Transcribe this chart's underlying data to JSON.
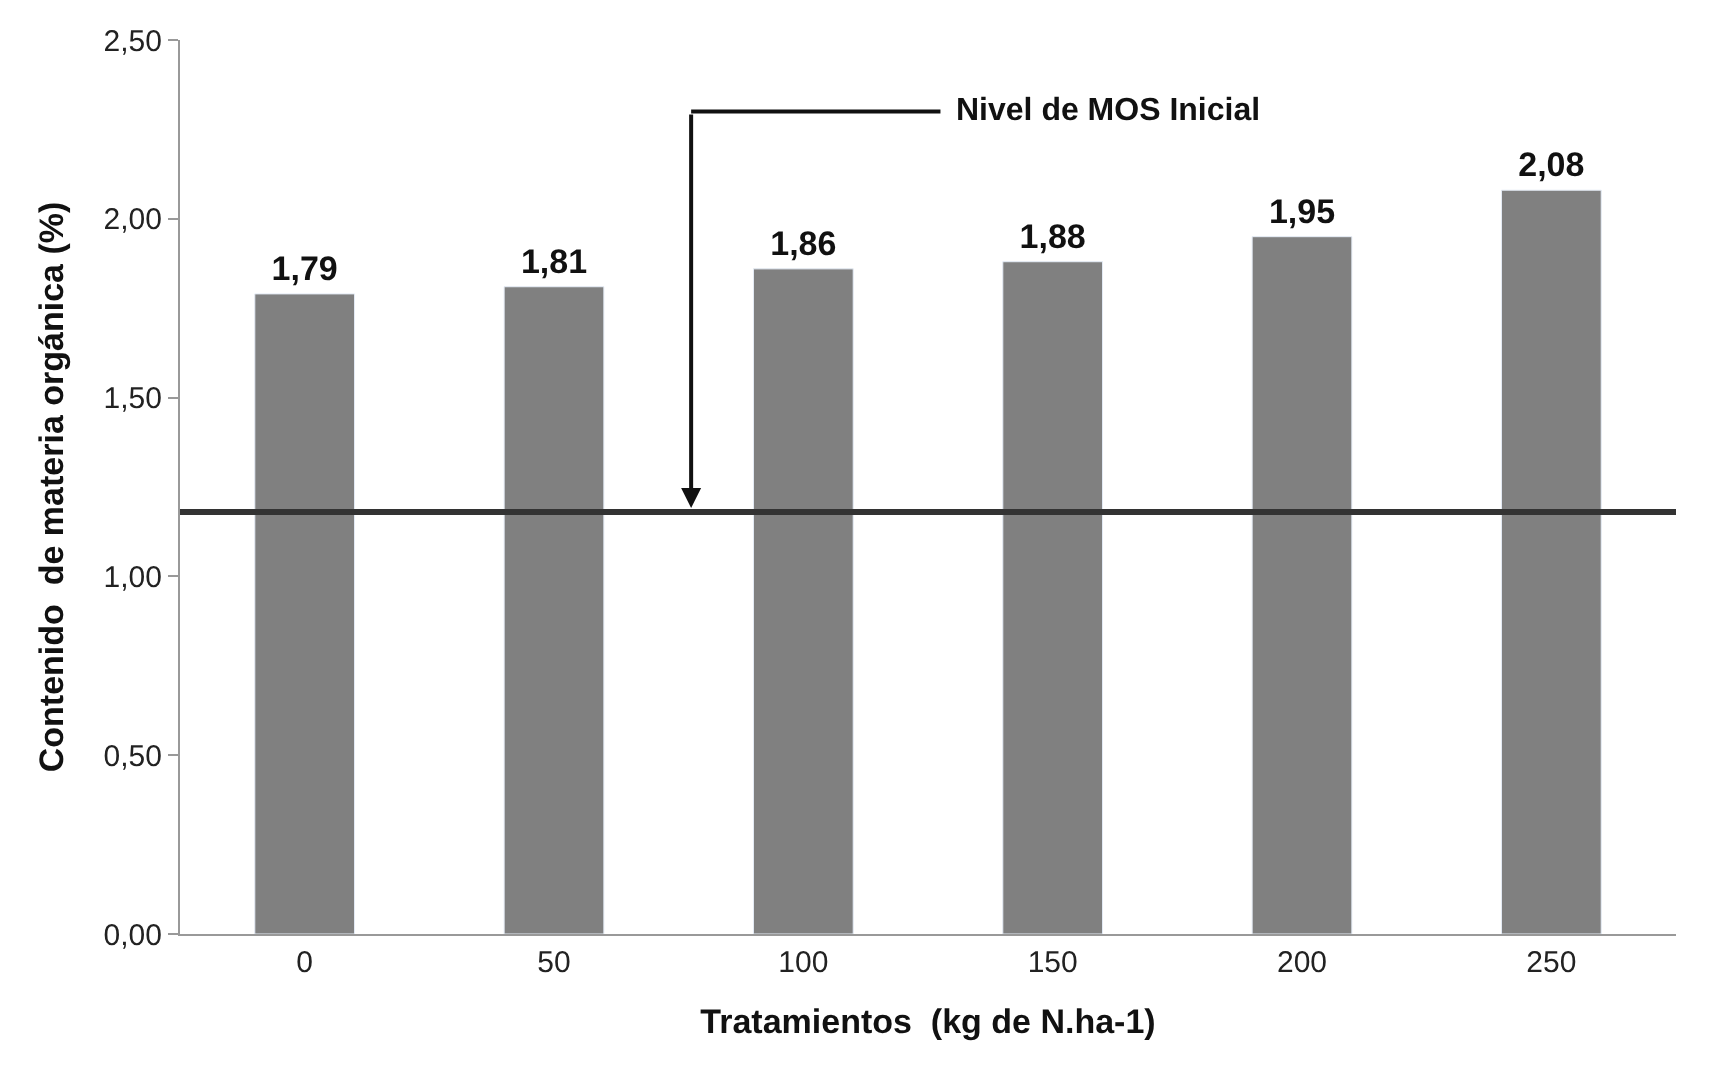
{
  "chart_data": {
    "type": "bar",
    "xlabel": "Tratamientos  (kg de N.ha-1)",
    "ylabel": "Contenido  de materia orgánica (%)",
    "categories": [
      "0",
      "50",
      "100",
      "150",
      "200",
      "250"
    ],
    "values": [
      1.79,
      1.81,
      1.86,
      1.88,
      1.95,
      2.08
    ],
    "value_labels": [
      "1,79",
      "1,81",
      "1,86",
      "1,88",
      "1,95",
      "2,08"
    ],
    "color": "#808080",
    "ylim": [
      0,
      2.5
    ],
    "yticks": [
      {
        "value": 0,
        "label": "0,00"
      },
      {
        "value": 0.5,
        "label": "0,50"
      },
      {
        "value": 1,
        "label": "1,00"
      },
      {
        "value": 1.5,
        "label": "1,50"
      },
      {
        "value": 2,
        "label": "2,00"
      },
      {
        "value": 2.5,
        "label": "2,50"
      }
    ],
    "ref_lines": [
      {
        "axis": "y",
        "value": 1.18,
        "label": "Nivel de MOS Inicial",
        "color": "#333333"
      }
    ]
  }
}
